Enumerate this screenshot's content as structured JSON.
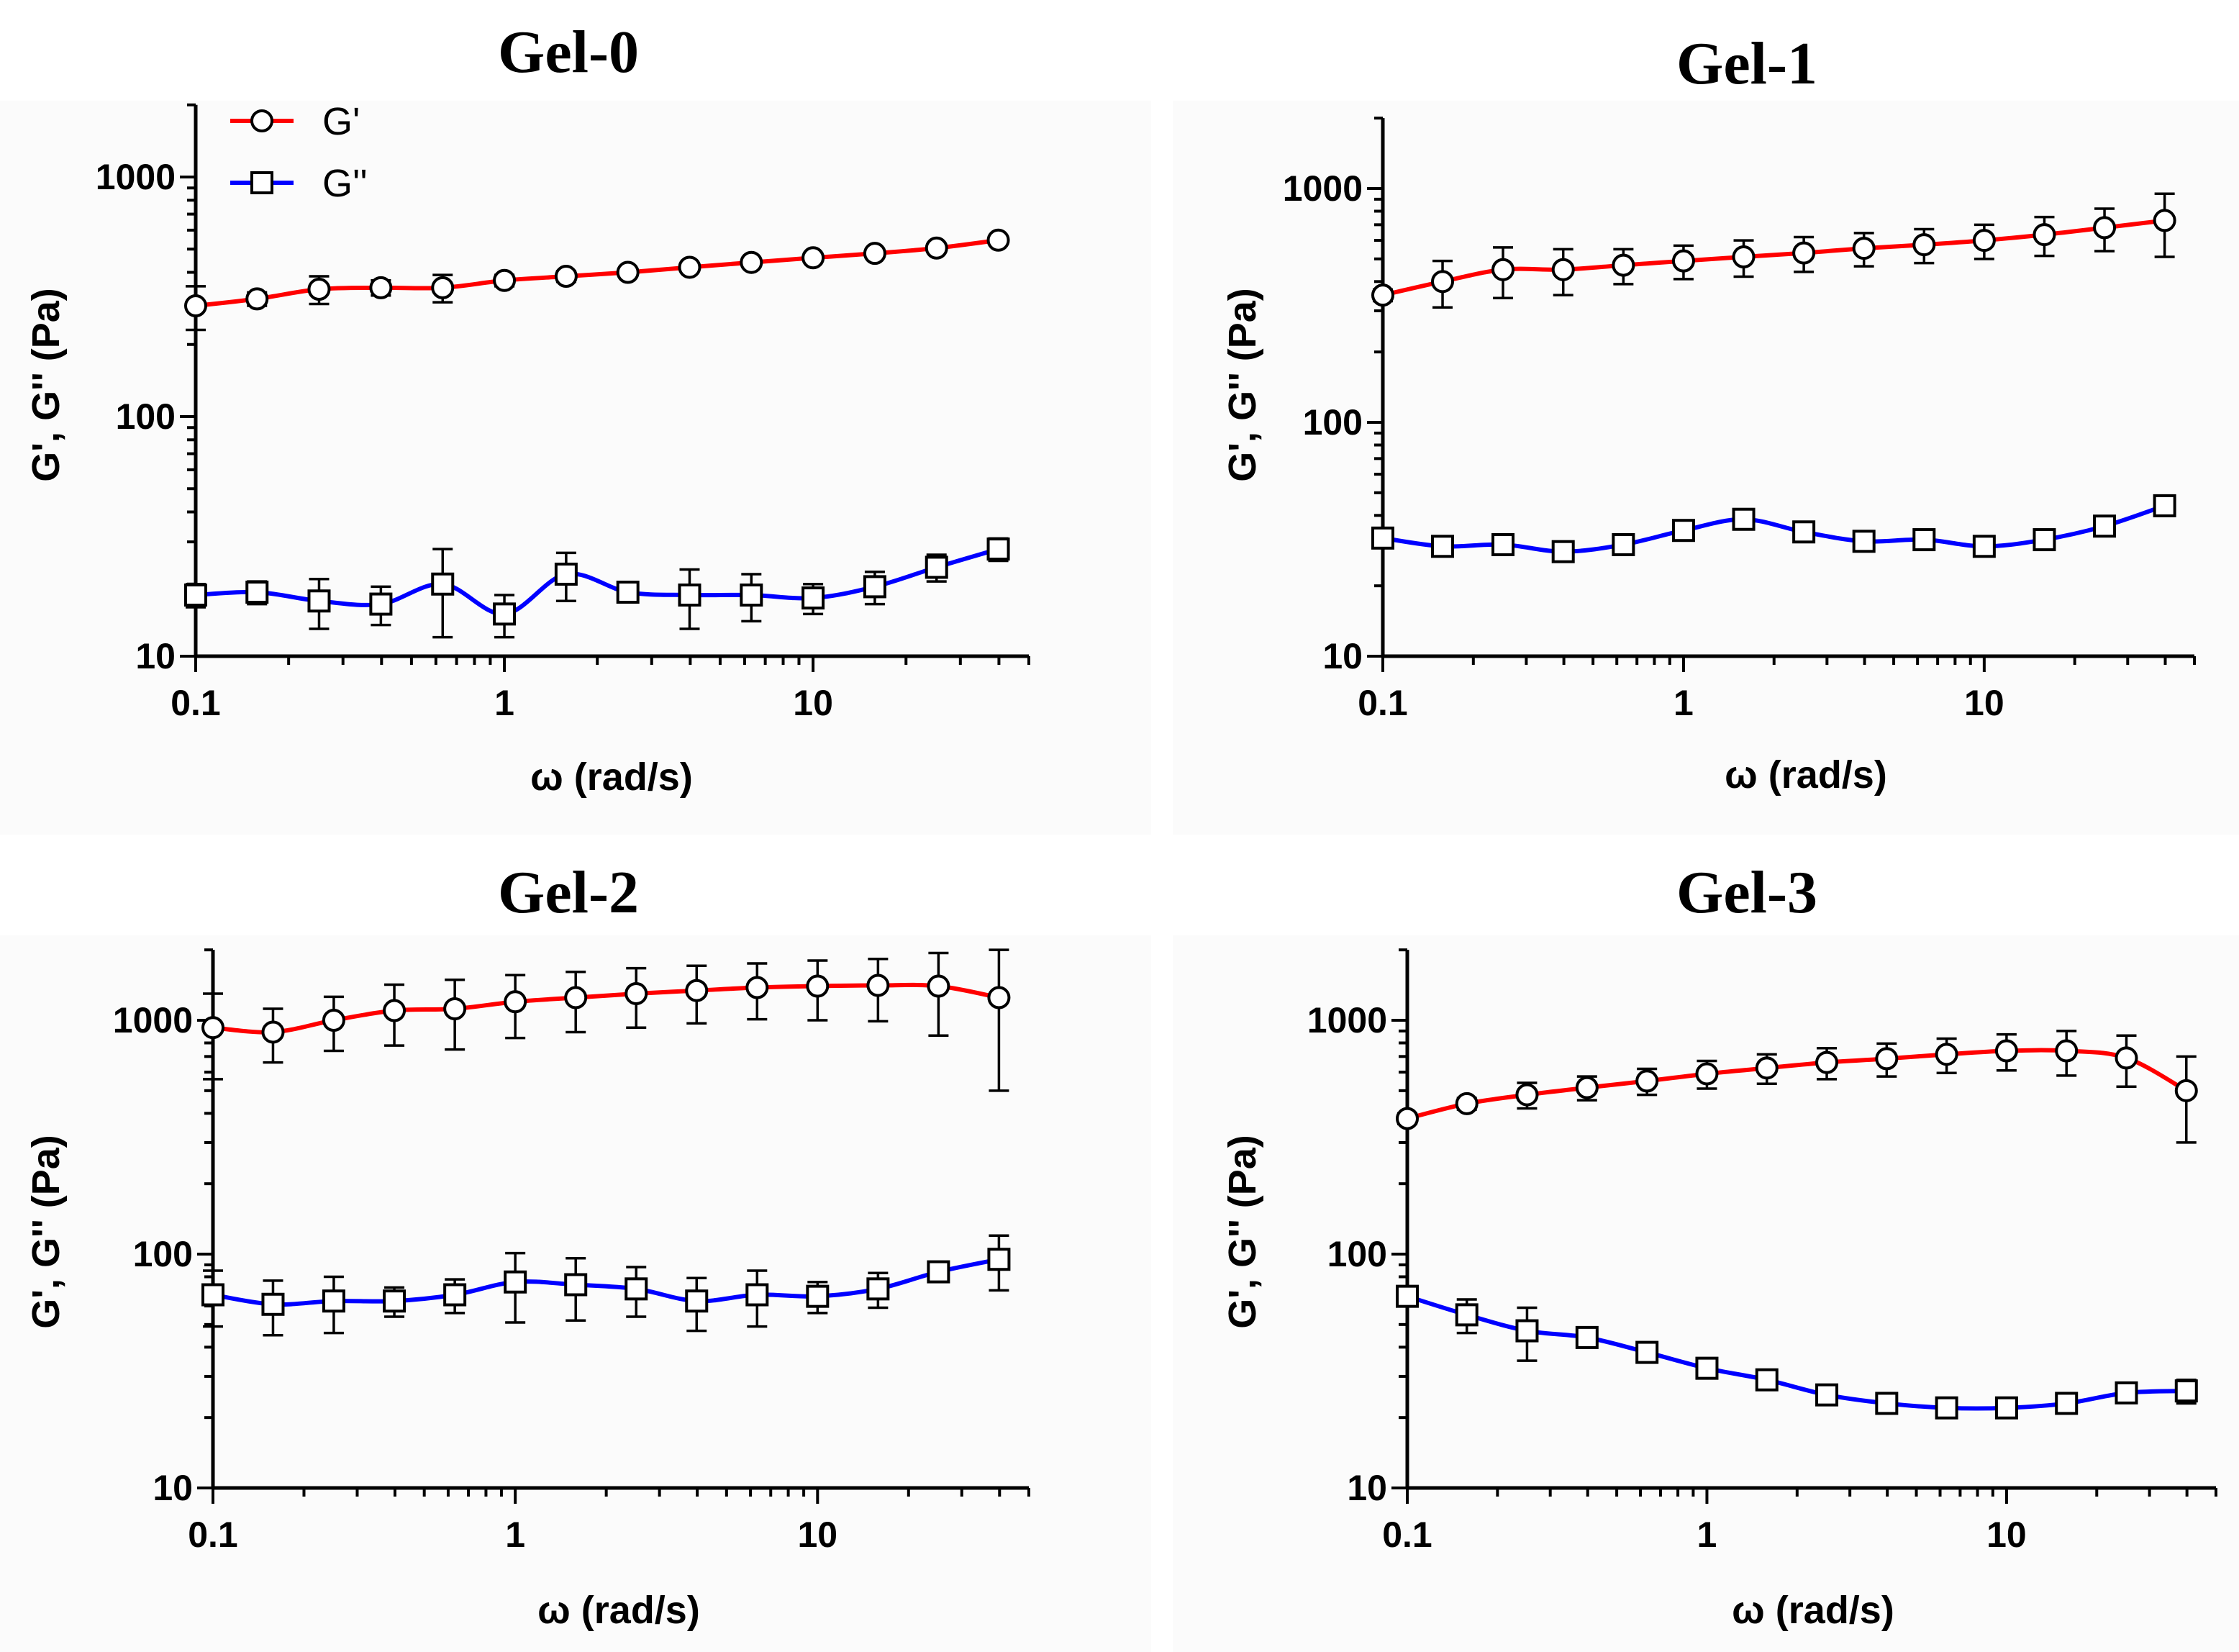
{
  "chart_data": [
    {
      "type": "line",
      "title": "Gel-0",
      "xlabel": "ω (rad/s)",
      "ylabel": "G', G'' (Pa)",
      "xscale": "log",
      "yscale": "log",
      "xlim": [
        0.1,
        50
      ],
      "ylim": [
        10,
        2000
      ],
      "xticks": [
        "0.1",
        "1",
        "10"
      ],
      "yticks": [
        "10",
        "100",
        "1000"
      ],
      "legend": {
        "position": "top-left",
        "entries": [
          "G'",
          "G''"
        ]
      },
      "x": [
        0.1,
        0.158,
        0.251,
        0.398,
        0.631,
        1,
        1.585,
        2.512,
        3.981,
        6.31,
        10,
        15.85,
        25.12,
        39.81
      ],
      "series": [
        {
          "name": "G'",
          "color": "#ff0000",
          "marker": "circle",
          "values": [
            290,
            310,
            340,
            345,
            345,
            370,
            385,
            400,
            420,
            440,
            460,
            480,
            505,
            545
          ],
          "errors": [
            60,
            20,
            45,
            25,
            45,
            20,
            20,
            15,
            15,
            15,
            15,
            15,
            15,
            15
          ]
        },
        {
          "name": "G''",
          "color": "#0000ff",
          "marker": "square",
          "values": [
            18,
            18.5,
            17,
            16.5,
            20,
            15,
            22,
            18.5,
            18,
            18,
            17.5,
            19.5,
            23.5,
            28
          ],
          "errors": [
            2,
            2,
            4,
            3,
            8,
            3,
            5,
            1,
            5,
            4,
            2.5,
            3,
            3,
            3
          ]
        }
      ]
    },
    {
      "type": "line",
      "title": "Gel-1",
      "xlabel": "ω (rad/s)",
      "ylabel": "G', G'' (Pa)",
      "xscale": "log",
      "yscale": "log",
      "xlim": [
        0.1,
        50
      ],
      "ylim": [
        10,
        2000
      ],
      "xticks": [
        "0.1",
        "1",
        "10"
      ],
      "yticks": [
        "10",
        "100",
        "1000"
      ],
      "x": [
        0.1,
        0.158,
        0.251,
        0.398,
        0.631,
        1,
        1.585,
        2.512,
        3.981,
        6.31,
        10,
        15.85,
        25.12,
        39.81
      ],
      "series": [
        {
          "name": "G'",
          "color": "#ff0000",
          "marker": "circle",
          "values": [
            350,
            400,
            450,
            450,
            470,
            490,
            510,
            530,
            555,
            575,
            600,
            635,
            680,
            730
          ],
          "errors": [
            20,
            90,
            110,
            100,
            80,
            80,
            90,
            90,
            90,
            95,
            100,
            120,
            140,
            220
          ]
        },
        {
          "name": "G''",
          "color": "#0000ff",
          "marker": "square",
          "values": [
            32,
            29.5,
            30,
            28,
            30,
            34.5,
            38.5,
            34,
            31,
            31.5,
            29.5,
            31.5,
            36,
            44
          ],
          "errors": [
            1.5,
            1,
            1,
            1,
            1,
            1,
            2,
            1,
            1,
            1,
            1,
            1,
            1,
            1.5
          ]
        }
      ]
    },
    {
      "type": "line",
      "title": "Gel-2",
      "xlabel": "ω (rad/s)",
      "ylabel": "G', G'' (Pa)",
      "xscale": "log",
      "yscale": "log",
      "xlim": [
        0.1,
        50
      ],
      "ylim": [
        10,
        2000
      ],
      "xticks": [
        "0.1",
        "1",
        "10"
      ],
      "yticks": [
        "10",
        "100",
        "1000"
      ],
      "x": [
        0.1,
        0.158,
        0.251,
        0.398,
        0.631,
        1,
        1.585,
        2.512,
        3.981,
        6.31,
        10,
        15.85,
        25.12,
        39.81
      ],
      "series": [
        {
          "name": "G'",
          "color": "#ff0000",
          "marker": "circle",
          "values": [
            930,
            890,
            1000,
            1100,
            1120,
            1200,
            1250,
            1300,
            1340,
            1380,
            1400,
            1410,
            1400,
            1250
          ],
          "errors": [
            370,
            230,
            260,
            320,
            370,
            360,
            360,
            370,
            370,
            370,
            400,
            420,
            540,
            750
          ]
        },
        {
          "name": "G''",
          "color": "#0000ff",
          "marker": "square",
          "values": [
            67,
            61,
            63,
            63,
            67,
            76,
            74,
            71,
            63,
            67,
            66,
            71,
            84,
            95
          ],
          "errors": [
            18,
            16,
            17,
            9,
            11,
            25,
            22,
            17,
            16,
            18,
            10,
            12,
            8,
            25
          ]
        }
      ]
    },
    {
      "type": "line",
      "title": "Gel-3",
      "xlabel": "ω (rad/s)",
      "ylabel": "G', G'' (Pa)",
      "xscale": "log",
      "yscale": "log",
      "xlim": [
        0.1,
        50
      ],
      "ylim": [
        10,
        2000
      ],
      "xticks": [
        "0.1",
        "1",
        "10"
      ],
      "yticks": [
        "10",
        "100",
        "1000"
      ],
      "x": [
        0.1,
        0.158,
        0.251,
        0.398,
        0.631,
        1,
        1.585,
        2.512,
        3.981,
        6.31,
        10,
        15.85,
        25.12,
        39.81
      ],
      "series": [
        {
          "name": "G'",
          "color": "#ff0000",
          "marker": "circle",
          "values": [
            380,
            440,
            480,
            515,
            550,
            590,
            625,
            660,
            685,
            715,
            740,
            740,
            690,
            500
          ],
          "errors": [
            20,
            25,
            60,
            60,
            70,
            80,
            90,
            100,
            110,
            120,
            130,
            160,
            170,
            200
          ]
        },
        {
          "name": "G''",
          "color": "#0000ff",
          "marker": "square",
          "values": [
            66,
            55,
            47,
            44,
            38,
            32.5,
            29,
            25,
            23,
            22,
            22,
            23,
            25.5,
            26
          ],
          "errors": [
            3,
            9,
            12,
            4,
            2,
            1.5,
            1,
            1,
            1,
            1,
            1,
            1,
            1,
            3
          ]
        }
      ]
    }
  ]
}
